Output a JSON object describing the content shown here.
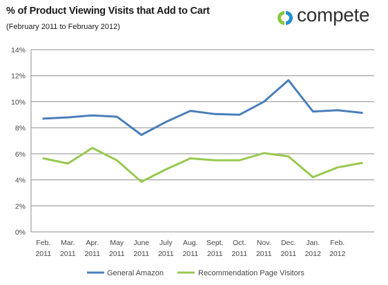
{
  "header": {
    "title": "% of Product Viewing Visits that Add to Cart",
    "subtitle": "(February 2011 to February 2012)"
  },
  "brand": {
    "name": "compete",
    "logo_icon": "compete-logo-icon",
    "colors": {
      "icon_green": "#8dc63f",
      "icon_blue": "#1f8fcf"
    }
  },
  "chart_data": {
    "type": "line",
    "title": "% of Product Viewing Visits that Add to Cart",
    "subtitle": "(February 2011 to February 2012)",
    "categories": [
      [
        "Feb.",
        "2011"
      ],
      [
        "Mar.",
        "2011"
      ],
      [
        "Apr.",
        "2011"
      ],
      [
        "May",
        "2011"
      ],
      [
        "June",
        "2011"
      ],
      [
        "July",
        "2011"
      ],
      [
        "Aug.",
        "2011"
      ],
      [
        "Sept.",
        "2011"
      ],
      [
        "Oct.",
        "2011"
      ],
      [
        "Nov.",
        "2011"
      ],
      [
        "Dec.",
        "2011"
      ],
      [
        "Jan.",
        "2012"
      ],
      [
        "Feb.",
        "2012"
      ],
      [
        "",
        ""
      ]
    ],
    "series": [
      {
        "name": "General Amazon",
        "color": "#4a7ebb",
        "values": [
          8.7,
          8.8,
          8.95,
          8.85,
          7.45,
          8.45,
          9.3,
          9.05,
          9.0,
          10.0,
          11.65,
          9.25,
          9.35,
          9.15
        ]
      },
      {
        "name": "Recommendation Page Visitors",
        "color": "#98c84f",
        "values": [
          5.65,
          5.25,
          6.45,
          5.5,
          3.85,
          4.8,
          5.65,
          5.5,
          5.5,
          6.05,
          5.8,
          4.2,
          4.95,
          5.3
        ]
      }
    ],
    "ylim": [
      0,
      14
    ],
    "yticks": [
      0,
      2,
      4,
      6,
      8,
      10,
      12,
      14
    ],
    "ytick_labels": [
      "0%",
      "2%",
      "4%",
      "6%",
      "8%",
      "10%",
      "12%",
      "14%"
    ],
    "xlabel": "",
    "ylabel": "",
    "grid": true,
    "legend_position": "bottom"
  }
}
